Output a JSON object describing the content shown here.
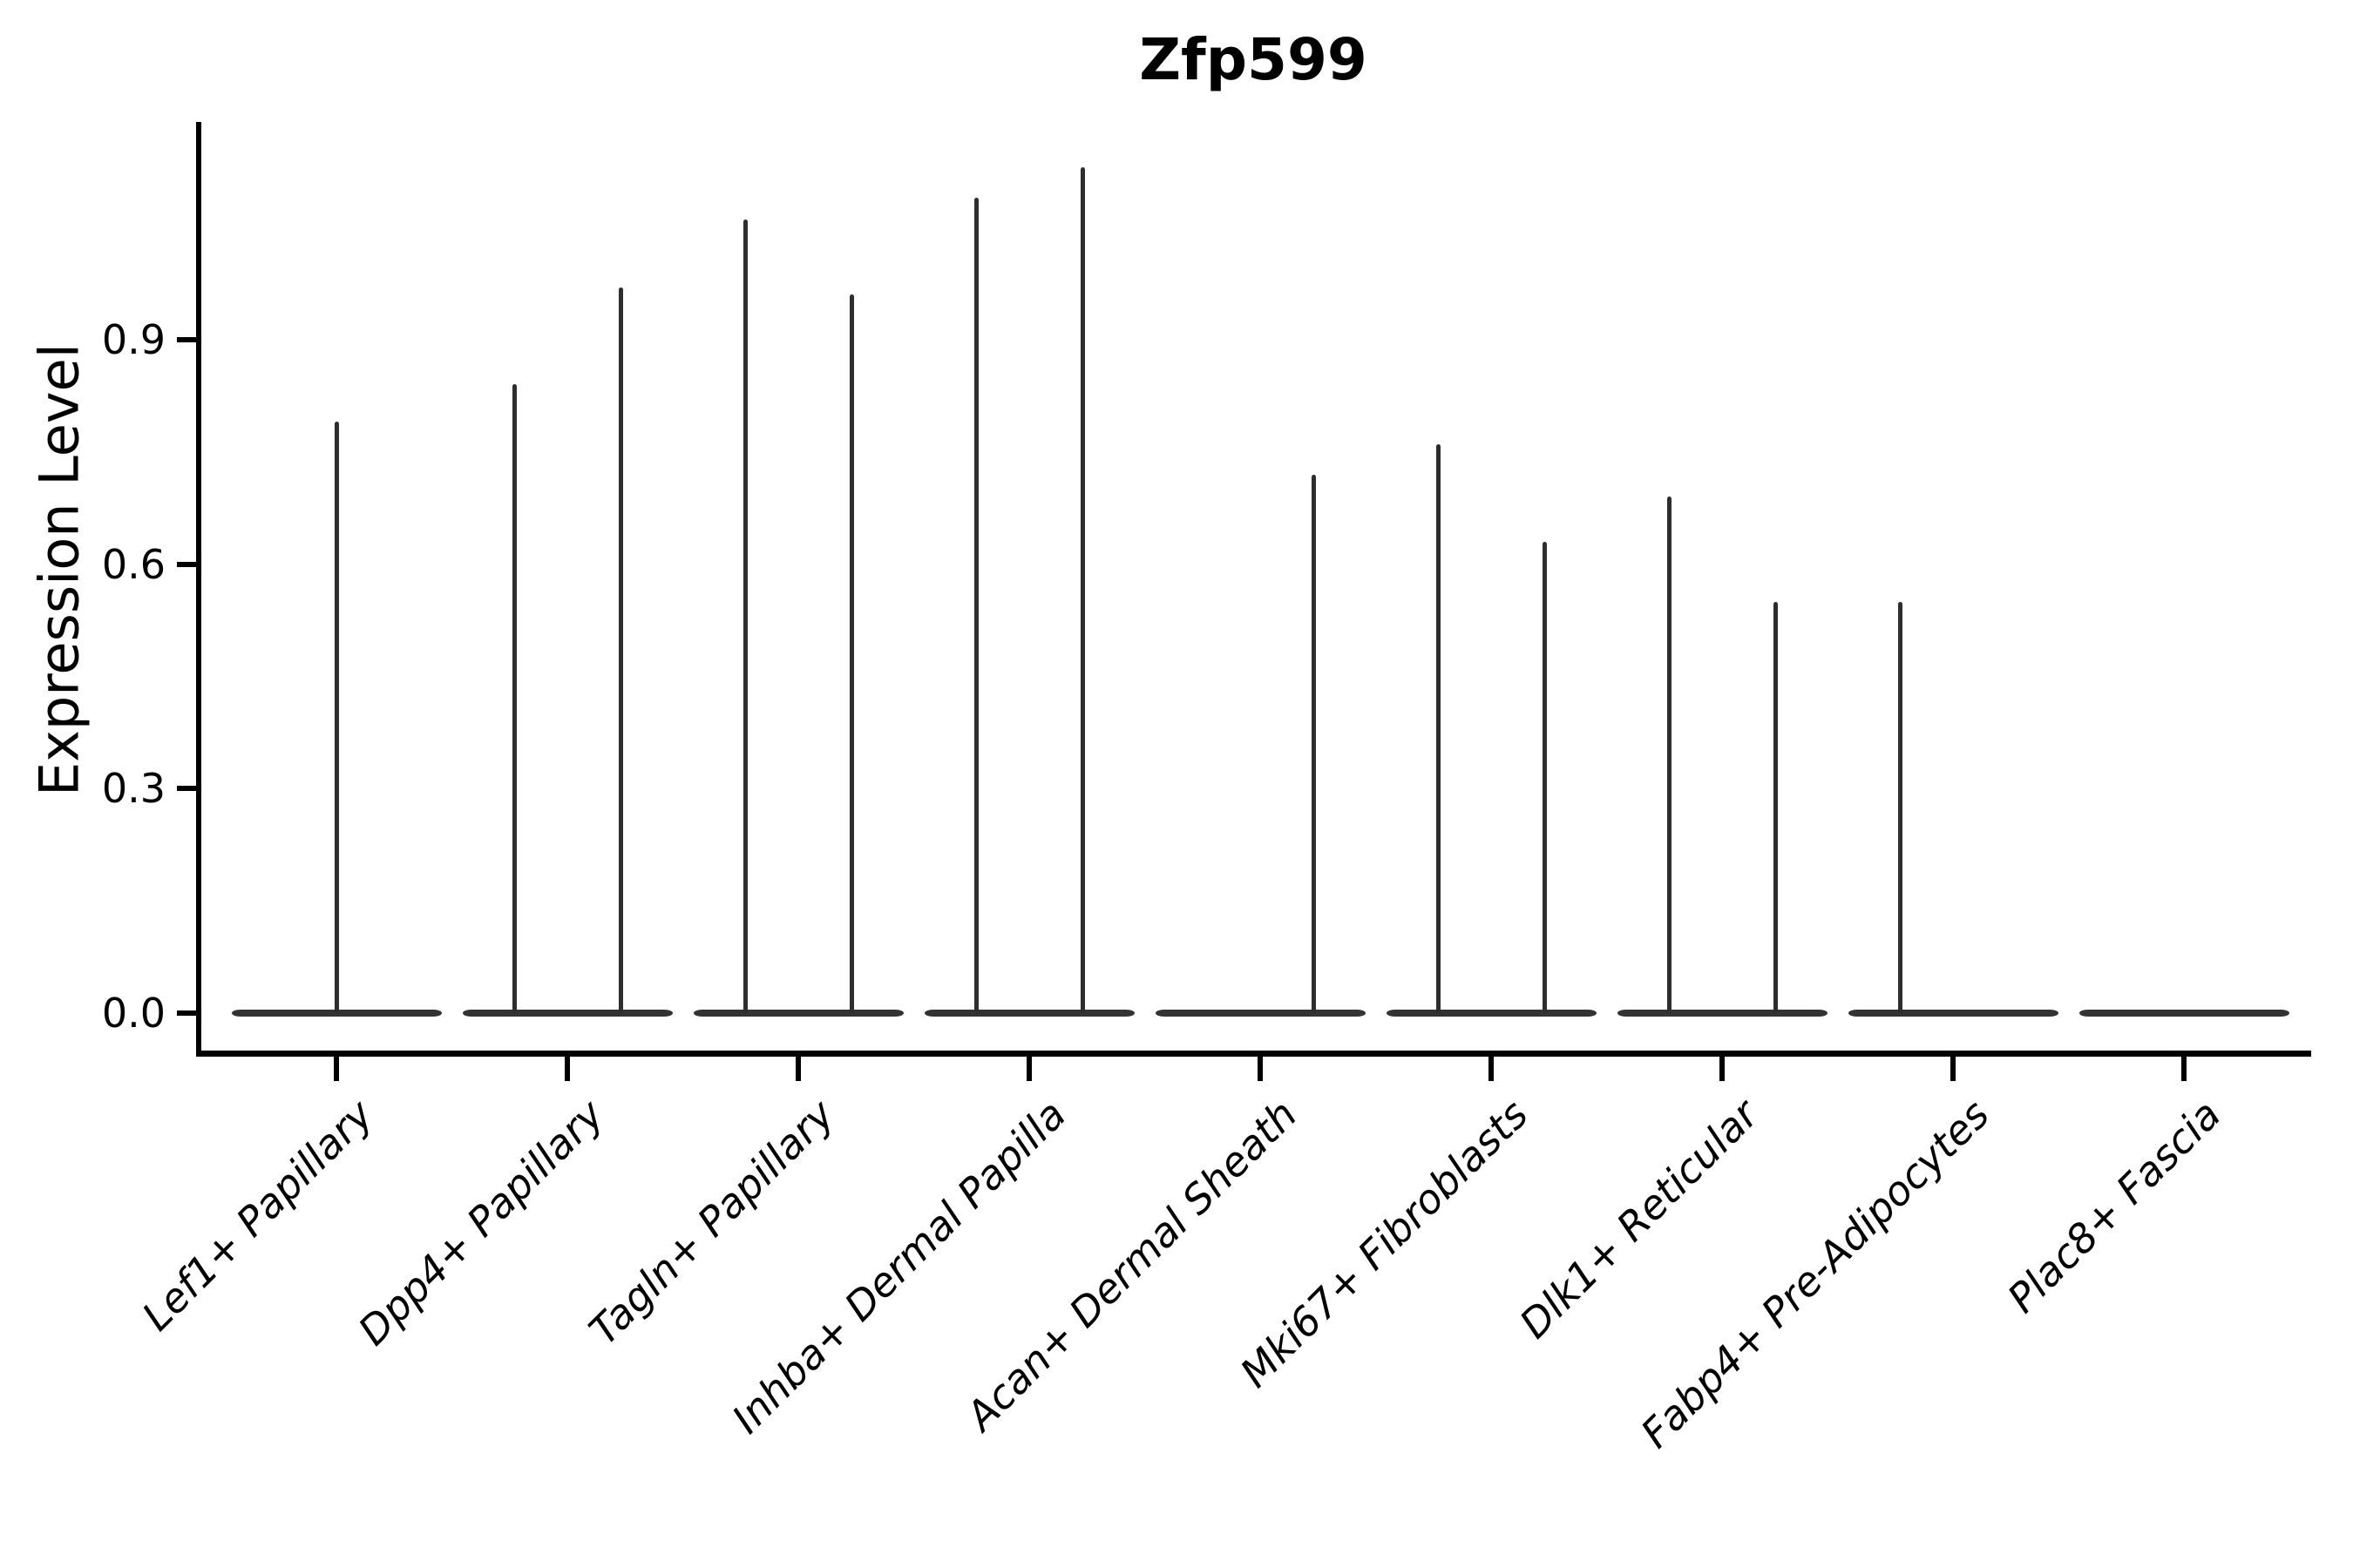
{
  "chart_data": {
    "type": "violin",
    "title": "Zfp599",
    "ylabel": "Expression Level",
    "xlabel": "",
    "grid": false,
    "legend": null,
    "ylim": [
      -0.05,
      1.19
    ],
    "yticks": [
      {
        "value": 0.0,
        "label": "0.0"
      },
      {
        "value": 0.3,
        "label": "0.3"
      },
      {
        "value": 0.6,
        "label": "0.6"
      },
      {
        "value": 0.9,
        "label": "0.9"
      }
    ],
    "categories": [
      "Lef1+ Papillary",
      "Dpp4+ Papillary",
      "Tagln+ Papillary",
      "Inhba+ Dermal Papilla",
      "Acan+ Dermal Sheath",
      "Mki67+ Fibroblasts",
      "Dlk1+ Reticular",
      "Fabp4+ Pre-Adipocytes",
      "Plac8+ Fascia"
    ],
    "violins": [
      {
        "label": "Lef1+ Papillary",
        "base_at_zero": true,
        "spikes": [
          {
            "side": "center",
            "max": 0.79
          }
        ]
      },
      {
        "label": "Dpp4+ Papillary",
        "base_at_zero": true,
        "spikes": [
          {
            "side": "left",
            "max": 0.84
          },
          {
            "side": "right",
            "max": 0.97
          }
        ]
      },
      {
        "label": "Tagln+ Papillary",
        "base_at_zero": true,
        "spikes": [
          {
            "side": "left",
            "max": 1.06
          },
          {
            "side": "right",
            "max": 0.96
          }
        ]
      },
      {
        "label": "Inhba+ Dermal Papilla",
        "base_at_zero": true,
        "spikes": [
          {
            "side": "left",
            "max": 1.09
          },
          {
            "side": "right",
            "max": 1.13
          }
        ]
      },
      {
        "label": "Acan+ Dermal Sheath",
        "base_at_zero": true,
        "spikes": [
          {
            "side": "right",
            "max": 0.72
          }
        ]
      },
      {
        "label": "Mki67+ Fibroblasts",
        "base_at_zero": true,
        "spikes": [
          {
            "side": "left",
            "max": 0.76
          },
          {
            "side": "right",
            "max": 0.63
          }
        ]
      },
      {
        "label": "Dlk1+ Reticular",
        "base_at_zero": true,
        "spikes": [
          {
            "side": "left",
            "max": 0.69
          },
          {
            "side": "right",
            "max": 0.55
          }
        ]
      },
      {
        "label": "Fabp4+ Pre-Adipocytes",
        "base_at_zero": true,
        "spikes": [
          {
            "side": "left",
            "max": 0.55
          }
        ]
      },
      {
        "label": "Plac8+ Fascia",
        "base_at_zero": true,
        "spikes": []
      }
    ],
    "colors": {
      "violin": "#333333",
      "spike": "#2e2e2e",
      "axis": "#000000",
      "text": "#000000",
      "background": "#ffffff"
    }
  }
}
